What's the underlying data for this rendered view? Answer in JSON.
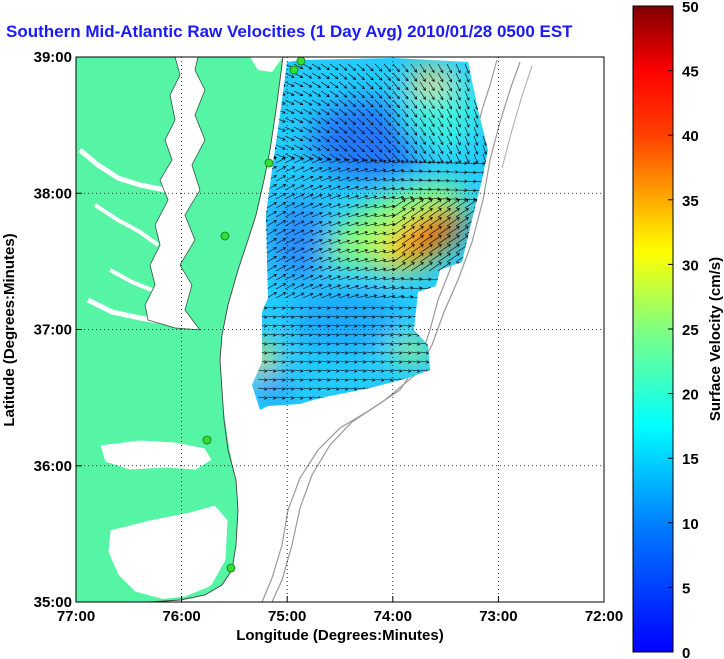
{
  "title": "Southern Mid-Atlantic Raw Velocities (1 Day Avg) 2010/01/28 0500 EST",
  "map": {
    "x_label": "Longitude (Degrees:Minutes)",
    "y_label": "Latitude (Degrees:Minutes)",
    "x_ticks": [
      {
        "value": -77,
        "label": "77:00"
      },
      {
        "value": -76,
        "label": "76:00"
      },
      {
        "value": -75,
        "label": "75:00"
      },
      {
        "value": -74,
        "label": "74:00"
      },
      {
        "value": -73,
        "label": "73:00"
      },
      {
        "value": -72,
        "label": "72:00"
      }
    ],
    "y_ticks": [
      {
        "value": 35,
        "label": "35:00"
      },
      {
        "value": 36,
        "label": "36:00"
      },
      {
        "value": 37,
        "label": "37:00"
      },
      {
        "value": 38,
        "label": "38:00"
      },
      {
        "value": 39,
        "label": "39:00"
      }
    ],
    "lon_range": [
      -77,
      -72
    ],
    "lat_range": [
      35,
      39
    ],
    "grid": "dotted",
    "land_color": "#55f5a5",
    "water_color": "#ffffff",
    "bathymetry_color": "#999999",
    "radar_sites_color": "#33dd33"
  },
  "colorbar": {
    "label": "Surface Velocity (cm/s)",
    "ticks": [
      "0",
      "5",
      "10",
      "15",
      "20",
      "25",
      "30",
      "35",
      "40",
      "45",
      "50"
    ],
    "range": [
      0,
      50
    ],
    "colormap": "jet"
  }
}
